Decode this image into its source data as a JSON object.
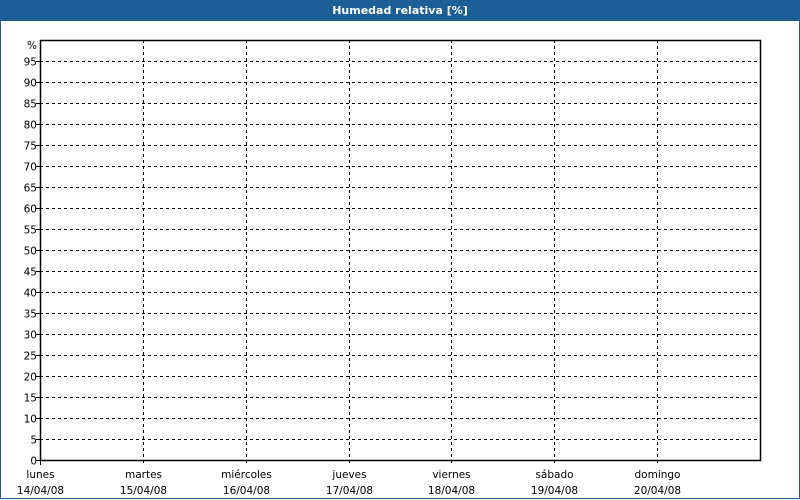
{
  "window": {
    "title": "Humedad relativa [%]",
    "title_bar_color": "#1c5f96"
  },
  "chart_data": {
    "type": "line",
    "title": "Humedad relativa [%]",
    "ylabel": "%",
    "xlabel": "",
    "ylim": [
      0,
      100
    ],
    "yticks": [
      0,
      5,
      10,
      15,
      20,
      25,
      30,
      35,
      40,
      45,
      50,
      55,
      60,
      65,
      70,
      75,
      80,
      85,
      90,
      95
    ],
    "x_categories": [
      {
        "day": "lunes",
        "date": "14/04/08"
      },
      {
        "day": "martes",
        "date": "15/04/08"
      },
      {
        "day": "miércoles",
        "date": "16/04/08"
      },
      {
        "day": "jueves",
        "date": "17/04/08"
      },
      {
        "day": "viernes",
        "date": "18/04/08"
      },
      {
        "day": "sábado",
        "date": "19/04/08"
      },
      {
        "day": "domingo",
        "date": "20/04/08"
      }
    ],
    "x_days_span": 7,
    "grid": true,
    "grid_style": "dashed",
    "series": []
  }
}
